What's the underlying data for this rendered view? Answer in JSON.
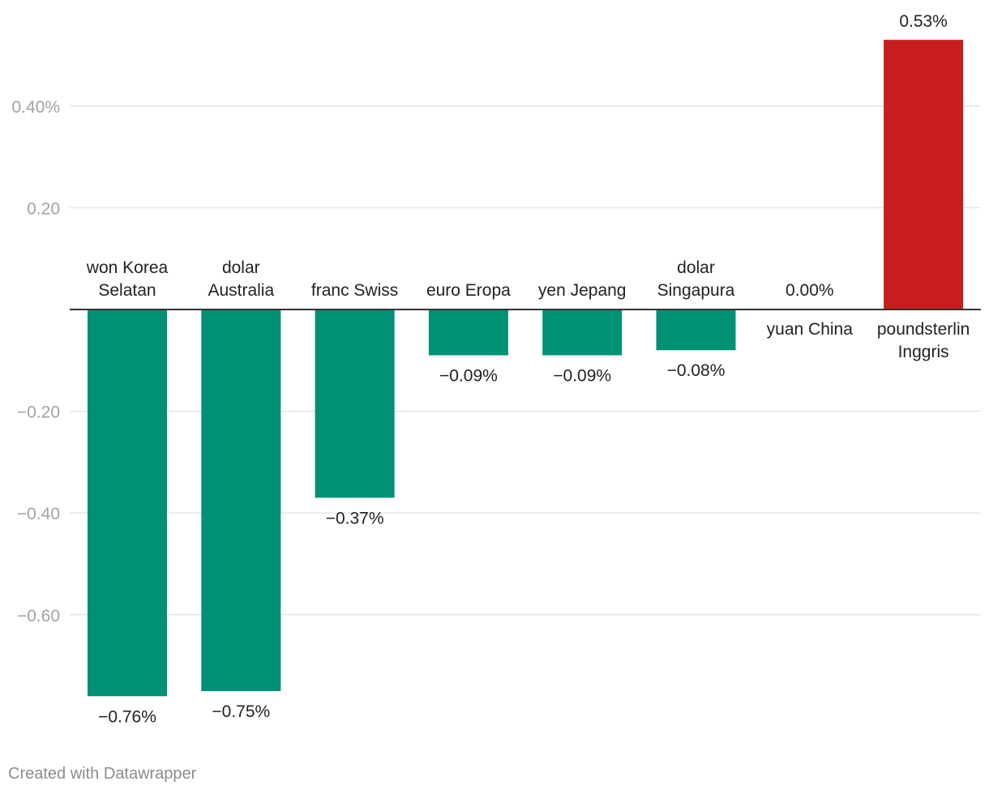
{
  "chart_data": {
    "type": "bar",
    "categories": [
      [
        "won Korea",
        "Selatan"
      ],
      [
        "dolar",
        "Australia"
      ],
      [
        "franc Swiss"
      ],
      [
        "euro Eropa"
      ],
      [
        "yen Jepang"
      ],
      [
        "dolar",
        "Singapura"
      ],
      [
        "yuan China"
      ],
      [
        "poundsterlin",
        "Inggris"
      ]
    ],
    "values": [
      -0.76,
      -0.75,
      -0.37,
      -0.09,
      -0.09,
      -0.08,
      0.0,
      0.53
    ],
    "value_labels": [
      "−0.76%",
      "−0.75%",
      "−0.37%",
      "−0.09%",
      "−0.09%",
      "−0.08%",
      "0.00%",
      "0.53%"
    ],
    "yticks": [
      {
        "value": 0.4,
        "label": "0.40%"
      },
      {
        "value": 0.2,
        "label": "0.20"
      },
      {
        "value": -0.2,
        "label": "−0.20"
      },
      {
        "value": -0.4,
        "label": "−0.40"
      },
      {
        "value": -0.6,
        "label": "−0.60"
      }
    ],
    "ylim": [
      -0.76,
      0.53
    ],
    "colors": {
      "negative": "#009174",
      "positive": "#c71e1d",
      "grid": "#e5e5e5",
      "axis": "#333333"
    }
  },
  "footer": {
    "credit": "Created with Datawrapper"
  }
}
